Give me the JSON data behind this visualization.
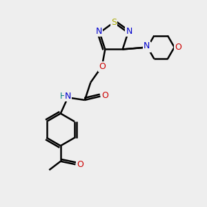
{
  "bg_color": "#eeeeee",
  "bond_color": "#000000",
  "S_color": "#aaaa00",
  "N_color": "#0000cc",
  "O_color": "#cc0000",
  "H_color": "#008080",
  "line_width": 1.8,
  "figsize": [
    3.0,
    3.0
  ],
  "dpi": 100,
  "xlim": [
    0,
    10
  ],
  "ylim": [
    0,
    10
  ]
}
